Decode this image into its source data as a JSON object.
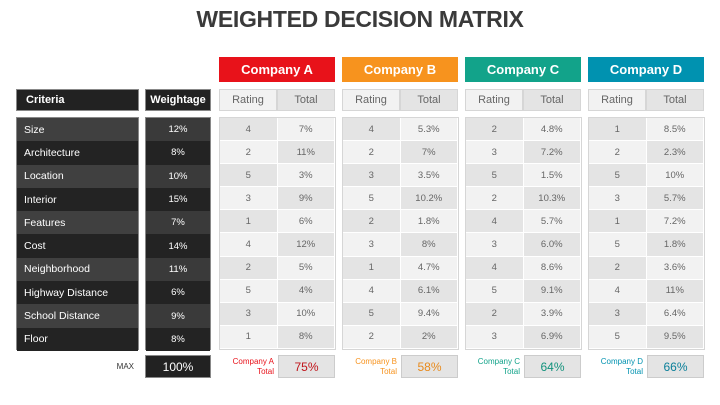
{
  "title": "WEIGHTED DECISION MATRIX",
  "headers": {
    "criteria": "Criteria",
    "weightage": "Weightage",
    "rating": "Rating",
    "total": "Total"
  },
  "criteria": [
    "Size",
    "Architecture",
    "Location",
    "Interior",
    "Features",
    "Cost",
    "Neighborhood",
    "Highway Distance",
    "School Distance",
    "Floor"
  ],
  "weightage": [
    "12%",
    "8%",
    "10%",
    "15%",
    "7%",
    "14%",
    "11%",
    "6%",
    "9%",
    "8%"
  ],
  "max_label": "MAX",
  "max_value": "100%",
  "companies": [
    {
      "name": "Company A",
      "color": "#e8121a",
      "text_color": "#c0141a",
      "total_label": "Company A Total",
      "total": "75%",
      "ratings": [
        "4",
        "2",
        "5",
        "3",
        "1",
        "4",
        "2",
        "5",
        "3",
        "1"
      ],
      "totals": [
        "7%",
        "11%",
        "3%",
        "9%",
        "6%",
        "12%",
        "5%",
        "4%",
        "10%",
        "8%"
      ]
    },
    {
      "name": "Company B",
      "color": "#f7931e",
      "text_color": "#e88a1c",
      "total_label": "Company B Total",
      "total": "58%",
      "ratings": [
        "4",
        "2",
        "3",
        "5",
        "2",
        "3",
        "1",
        "4",
        "5",
        "2"
      ],
      "totals": [
        "5.3%",
        "7%",
        "3.5%",
        "10.2%",
        "1.8%",
        "8%",
        "4.7%",
        "6.1%",
        "9.4%",
        "2%"
      ]
    },
    {
      "name": "Company C",
      "color": "#12a38a",
      "text_color": "#12927c",
      "total_label": "Company C Total",
      "total": "64%",
      "ratings": [
        "2",
        "3",
        "5",
        "2",
        "4",
        "3",
        "4",
        "5",
        "2",
        "3"
      ],
      "totals": [
        "4.8%",
        "7.2%",
        "1.5%",
        "10.3%",
        "5.7%",
        "6.0%",
        "8.6%",
        "9.1%",
        "3.9%",
        "6.9%"
      ]
    },
    {
      "name": "Company D",
      "color": "#0092b0",
      "text_color": "#0a7f99",
      "total_label": "Company D Total",
      "total": "66%",
      "ratings": [
        "1",
        "2",
        "5",
        "3",
        "1",
        "5",
        "2",
        "4",
        "3",
        "5"
      ],
      "totals": [
        "8.5%",
        "2.3%",
        "10%",
        "5.7%",
        "7.2%",
        "1.8%",
        "3.6%",
        "11%",
        "6.4%",
        "9.5%"
      ]
    }
  ]
}
